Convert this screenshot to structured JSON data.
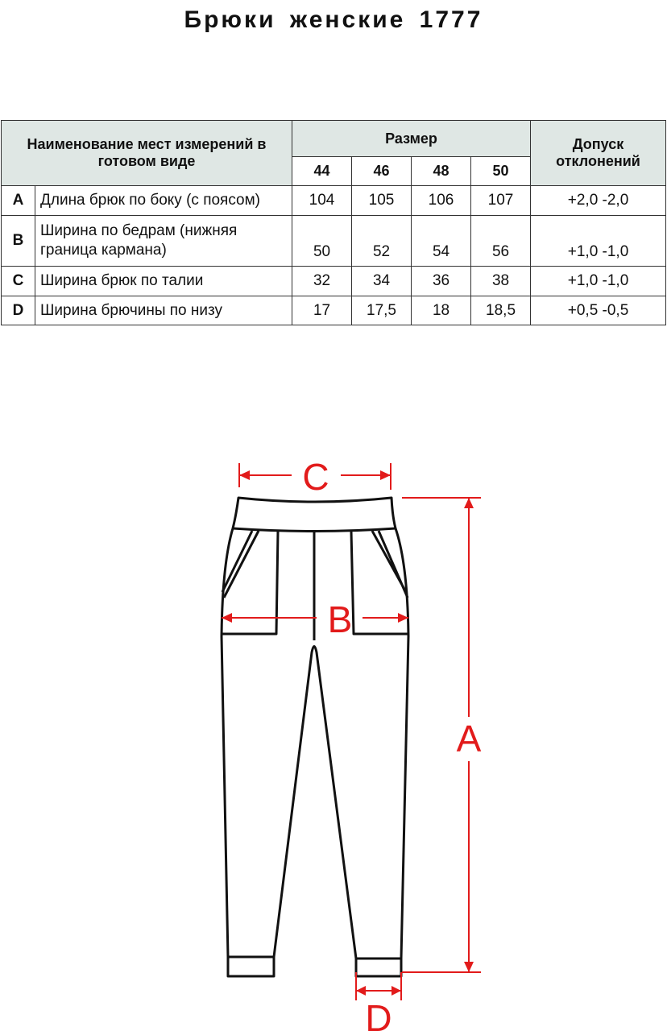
{
  "title": "Брюки женские  1777",
  "table": {
    "header_name": "Наименование мест измерений в готовом виде",
    "header_size": "Размер",
    "header_tolerance": "Допуск отклонений",
    "sizes": [
      "44",
      "46",
      "48",
      "50"
    ],
    "rows": [
      {
        "letter": "A",
        "name": "Длина брюк по боку (с поясом)",
        "values": [
          "104",
          "105",
          "106",
          "107"
        ],
        "tolerance": "+2,0 -2,0"
      },
      {
        "letter": "B",
        "name": "Ширина по бедрам (нижняя граница кармана)",
        "values": [
          "50",
          "52",
          "54",
          "56"
        ],
        "tolerance": "+1,0 -1,0"
      },
      {
        "letter": "C",
        "name": "Ширина брюк по талии",
        "values": [
          "32",
          "34",
          "36",
          "38"
        ],
        "tolerance": "+1,0 -1,0"
      },
      {
        "letter": "D",
        "name": "Ширина брючины по низу",
        "values": [
          "17",
          "17,5",
          "18",
          "18,5"
        ],
        "tolerance": "+0,5 -0,5"
      }
    ]
  },
  "diagram": {
    "labels": {
      "a": "A",
      "b": "B",
      "c": "C",
      "d": "D"
    },
    "measure_color": "#e21b1b",
    "header_color": "#dfe7e4"
  }
}
